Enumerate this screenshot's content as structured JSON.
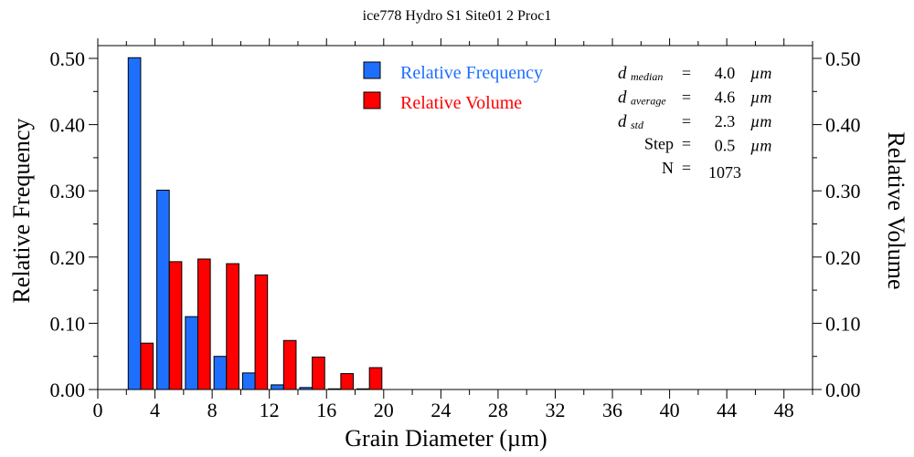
{
  "chart_data": {
    "type": "bar",
    "title": "ice778 Hydro S1 Site01 2 Proc1",
    "xlabel": "Grain Diameter (µm)",
    "ylabel": "Relative Frequency",
    "y2label": "Relative Volume",
    "xlim": [
      0,
      50
    ],
    "ylim": [
      0,
      0.5
    ],
    "xticks": [
      "0",
      "4",
      "8",
      "12",
      "16",
      "20",
      "24",
      "28",
      "32",
      "36",
      "40",
      "44",
      "48"
    ],
    "yticks": [
      "0.00",
      "0.10",
      "0.20",
      "0.30",
      "0.40",
      "0.50"
    ],
    "bins": [
      [
        2,
        4
      ],
      [
        4,
        6
      ],
      [
        6,
        8
      ],
      [
        8,
        10
      ],
      [
        10,
        12
      ],
      [
        12,
        14
      ],
      [
        14,
        16
      ],
      [
        16,
        18
      ],
      [
        18,
        20
      ]
    ],
    "series": [
      {
        "name": "Relative Frequency",
        "color": "#1f6fff",
        "values": [
          0.501,
          0.301,
          0.11,
          0.05,
          0.025,
          0.007,
          0.003,
          0.001,
          0.001
        ]
      },
      {
        "name": "Relative Volume",
        "color": "#ff0000",
        "values": [
          0.07,
          0.193,
          0.197,
          0.19,
          0.173,
          0.074,
          0.049,
          0.024,
          0.033
        ]
      }
    ],
    "legend_position": "top-center",
    "stats": [
      {
        "label": "d",
        "sub": "median",
        "eq": "=",
        "value": "4.0",
        "unit": "µm"
      },
      {
        "label": "d",
        "sub": "average",
        "eq": "=",
        "value": "4.6",
        "unit": "µm"
      },
      {
        "label": "d",
        "sub": "std",
        "eq": "=",
        "value": "2.3",
        "unit": "µm"
      },
      {
        "label": "Step",
        "sub": "",
        "eq": "=",
        "value": "0.5",
        "unit": "µm"
      },
      {
        "label": "N",
        "sub": "",
        "eq": "=",
        "value": "1073",
        "unit": ""
      }
    ]
  }
}
